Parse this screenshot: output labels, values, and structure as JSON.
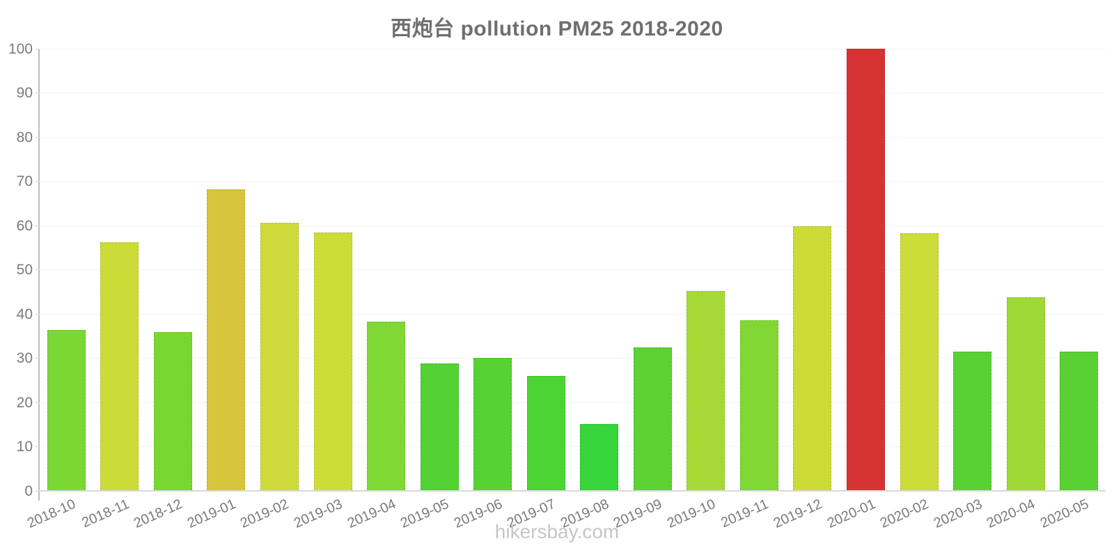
{
  "header": {
    "title": "西炮台 pollution PM25 2018-2020"
  },
  "footer": {
    "watermark": "hikersbay.com"
  },
  "chart_data": {
    "type": "bar",
    "title": "西炮台 pollution PM25 2018-2020",
    "categories": [
      "2018-10",
      "2018-11",
      "2018-12",
      "2019-01",
      "2019-02",
      "2019-03",
      "2019-04",
      "2019-05",
      "2019-06",
      "2019-07",
      "2019-08",
      "2019-09",
      "2019-10",
      "2019-11",
      "2019-12",
      "2020-01",
      "2020-02",
      "2020-03",
      "2020-04",
      "2020-05"
    ],
    "values": [
      36.3,
      56.0,
      35.8,
      68.1,
      60.5,
      58.2,
      38.1,
      28.6,
      29.9,
      25.8,
      15.0,
      32.3,
      45.0,
      38.4,
      59.7,
      100,
      58.1,
      31.3,
      43.6,
      31.4
    ],
    "bar_colors": [
      "#7bd733",
      "#cbdc39",
      "#79d733",
      "#d7c53b",
      "#cedb3a",
      "#ccdc39",
      "#80d834",
      "#52d233",
      "#56d233",
      "#4cd434",
      "#38d53c",
      "#5ed133",
      "#a5da36",
      "#81d834",
      "#cddb39",
      "#d63333",
      "#ccdc39",
      "#59d133",
      "#9fd936",
      "#5ad133"
    ],
    "xlabel": "",
    "ylabel": "",
    "ylim": [
      0,
      100
    ],
    "y_ticks": [
      0,
      10,
      20,
      30,
      40,
      50,
      60,
      70,
      80,
      90,
      100
    ],
    "grid": "horizontal-faint",
    "legend": false,
    "colors": {
      "axis": "#bdbdbd",
      "baseline": "#d9d9d9",
      "grid": "#f3f3f3",
      "tick_label": "#7a7a7a",
      "title": "#6f6f6f",
      "watermark": "#c6c6c6",
      "low_value_green": "#38d53c",
      "mid_value_yellow": "#d7c53b",
      "high_value_red": "#d63333"
    }
  }
}
